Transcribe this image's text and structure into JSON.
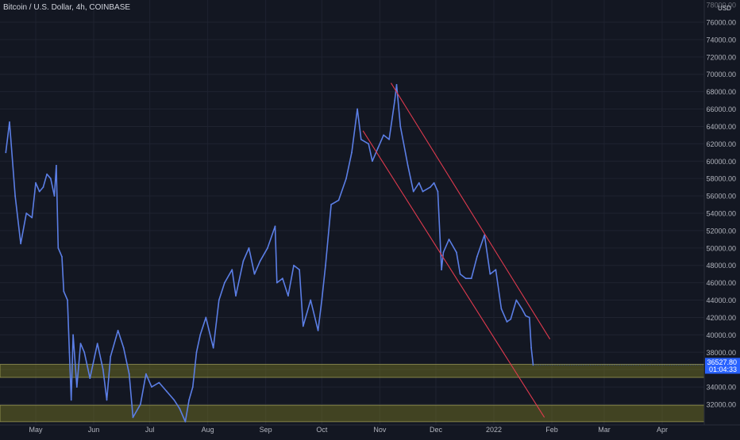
{
  "chart_data": {
    "type": "line",
    "title": "Bitcoin / U.S. Dollar, 4h, COINBASE",
    "currency_label": "USD",
    "ylim": [
      31000,
      78200
    ],
    "y_ticks": [
      32000,
      34000,
      36000,
      38000,
      40000,
      42000,
      44000,
      46000,
      48000,
      50000,
      52000,
      54000,
      56000,
      58000,
      60000,
      62000,
      64000,
      66000,
      68000,
      70000,
      72000,
      74000,
      76000
    ],
    "y_tick_labels": [
      "32000.00",
      "34000.00",
      "36000.00",
      "38000.00",
      "40000.00",
      "42000.00",
      "44000.00",
      "46000.00",
      "48000.00",
      "50000.00",
      "52000.00",
      "54000.00",
      "56000.00",
      "58000.00",
      "60000.00",
      "62000.00",
      "64000.00",
      "66000.00",
      "68000.00",
      "70000.00",
      "72000.00",
      "74000.00",
      "76000.00"
    ],
    "x_labels": [
      {
        "date": "2021-05-01",
        "label": "May"
      },
      {
        "date": "2021-06-01",
        "label": "Jun"
      },
      {
        "date": "2021-07-01",
        "label": "Jul"
      },
      {
        "date": "2021-08-01",
        "label": "Aug"
      },
      {
        "date": "2021-09-01",
        "label": "Sep"
      },
      {
        "date": "2021-10-01",
        "label": "Oct"
      },
      {
        "date": "2021-11-01",
        "label": "Nov"
      },
      {
        "date": "2021-12-01",
        "label": "Dec"
      },
      {
        "date": "2022-01-01",
        "label": "2022"
      },
      {
        "date": "2022-02-01",
        "label": "Feb"
      },
      {
        "date": "2022-03-01",
        "label": "Mar"
      },
      {
        "date": "2022-04-01",
        "label": "Apr"
      }
    ],
    "series": [
      {
        "color": "#5b7ee5",
        "points": [
          [
            "2021-04-15",
            61000
          ],
          [
            "2021-04-17",
            64500
          ],
          [
            "2021-04-20",
            56000
          ],
          [
            "2021-04-23",
            50500
          ],
          [
            "2021-04-26",
            54000
          ],
          [
            "2021-04-29",
            53500
          ],
          [
            "2021-05-01",
            57500
          ],
          [
            "2021-05-03",
            56500
          ],
          [
            "2021-05-05",
            57000
          ],
          [
            "2021-05-07",
            58500
          ],
          [
            "2021-05-09",
            58000
          ],
          [
            "2021-05-11",
            56000
          ],
          [
            "2021-05-12",
            59500
          ],
          [
            "2021-05-13",
            50000
          ],
          [
            "2021-05-15",
            49000
          ],
          [
            "2021-05-16",
            45000
          ],
          [
            "2021-05-18",
            44000
          ],
          [
            "2021-05-19",
            38000
          ],
          [
            "2021-05-20",
            32500
          ],
          [
            "2021-05-21",
            40000
          ],
          [
            "2021-05-23",
            34000
          ],
          [
            "2021-05-25",
            39000
          ],
          [
            "2021-05-27",
            38000
          ],
          [
            "2021-05-30",
            35000
          ],
          [
            "2021-06-03",
            39000
          ],
          [
            "2021-06-06",
            36000
          ],
          [
            "2021-06-08",
            32500
          ],
          [
            "2021-06-10",
            37500
          ],
          [
            "2021-06-14",
            40500
          ],
          [
            "2021-06-17",
            38500
          ],
          [
            "2021-06-20",
            35500
          ],
          [
            "2021-06-22",
            30500
          ],
          [
            "2021-06-26",
            32000
          ],
          [
            "2021-06-29",
            35500
          ],
          [
            "2021-07-02",
            34000
          ],
          [
            "2021-07-06",
            34500
          ],
          [
            "2021-07-10",
            33500
          ],
          [
            "2021-07-14",
            32500
          ],
          [
            "2021-07-17",
            31500
          ],
          [
            "2021-07-20",
            30000
          ],
          [
            "2021-07-22",
            32500
          ],
          [
            "2021-07-24",
            34000
          ],
          [
            "2021-07-26",
            38000
          ],
          [
            "2021-07-28",
            40000
          ],
          [
            "2021-07-31",
            42000
          ],
          [
            "2021-08-04",
            38500
          ],
          [
            "2021-08-07",
            44000
          ],
          [
            "2021-08-10",
            46000
          ],
          [
            "2021-08-14",
            47500
          ],
          [
            "2021-08-16",
            44500
          ],
          [
            "2021-08-20",
            48500
          ],
          [
            "2021-08-23",
            50000
          ],
          [
            "2021-08-26",
            47000
          ],
          [
            "2021-08-29",
            48500
          ],
          [
            "2021-09-02",
            50000
          ],
          [
            "2021-09-06",
            52500
          ],
          [
            "2021-09-07",
            46000
          ],
          [
            "2021-09-10",
            46500
          ],
          [
            "2021-09-13",
            44500
          ],
          [
            "2021-09-16",
            48000
          ],
          [
            "2021-09-19",
            47500
          ],
          [
            "2021-09-21",
            41000
          ],
          [
            "2021-09-25",
            44000
          ],
          [
            "2021-09-29",
            40500
          ],
          [
            "2021-10-01",
            44000
          ],
          [
            "2021-10-03",
            48000
          ],
          [
            "2021-10-06",
            55000
          ],
          [
            "2021-10-10",
            55500
          ],
          [
            "2021-10-14",
            58000
          ],
          [
            "2021-10-17",
            61000
          ],
          [
            "2021-10-20",
            66000
          ],
          [
            "2021-10-22",
            62500
          ],
          [
            "2021-10-26",
            62000
          ],
          [
            "2021-10-28",
            60000
          ],
          [
            "2021-10-31",
            61500
          ],
          [
            "2021-11-03",
            63000
          ],
          [
            "2021-11-06",
            62500
          ],
          [
            "2021-11-09",
            67000
          ],
          [
            "2021-11-10",
            68800
          ],
          [
            "2021-11-12",
            64000
          ],
          [
            "2021-11-16",
            59500
          ],
          [
            "2021-11-19",
            56500
          ],
          [
            "2021-11-22",
            57500
          ],
          [
            "2021-11-24",
            56500
          ],
          [
            "2021-11-28",
            57000
          ],
          [
            "2021-11-30",
            57500
          ],
          [
            "2021-12-02",
            56500
          ],
          [
            "2021-12-04",
            47500
          ],
          [
            "2021-12-05",
            49500
          ],
          [
            "2021-12-08",
            51000
          ],
          [
            "2021-12-12",
            49500
          ],
          [
            "2021-12-14",
            47000
          ],
          [
            "2021-12-17",
            46500
          ],
          [
            "2021-12-20",
            46500
          ],
          [
            "2021-12-23",
            49000
          ],
          [
            "2021-12-27",
            51500
          ],
          [
            "2021-12-30",
            47000
          ],
          [
            "2022-01-02",
            47500
          ],
          [
            "2022-01-05",
            43000
          ],
          [
            "2022-01-08",
            41500
          ],
          [
            "2022-01-10",
            41800
          ],
          [
            "2022-01-13",
            44000
          ],
          [
            "2022-01-16",
            43000
          ],
          [
            "2022-01-18",
            42200
          ],
          [
            "2022-01-20",
            42000
          ],
          [
            "2022-01-21",
            38500
          ],
          [
            "2022-01-22",
            36527.8
          ]
        ]
      }
    ],
    "last_price_label": "36527.80",
    "countdown_label": "01:04:33",
    "channel": {
      "color": "#e03a4e",
      "upper": [
        [
          "2021-11-07",
          69000
        ],
        [
          "2022-01-31",
          39500
        ]
      ],
      "lower": [
        [
          "2021-10-23",
          63500
        ],
        [
          "2022-01-28",
          30500
        ]
      ]
    },
    "zones": [
      {
        "color": "#7a7a24",
        "ymin": 35100,
        "ymax": 36600
      },
      {
        "color": "#7a7a24",
        "ymin": 30000,
        "ymax": 31900
      }
    ],
    "grid": true,
    "legend": "none"
  }
}
